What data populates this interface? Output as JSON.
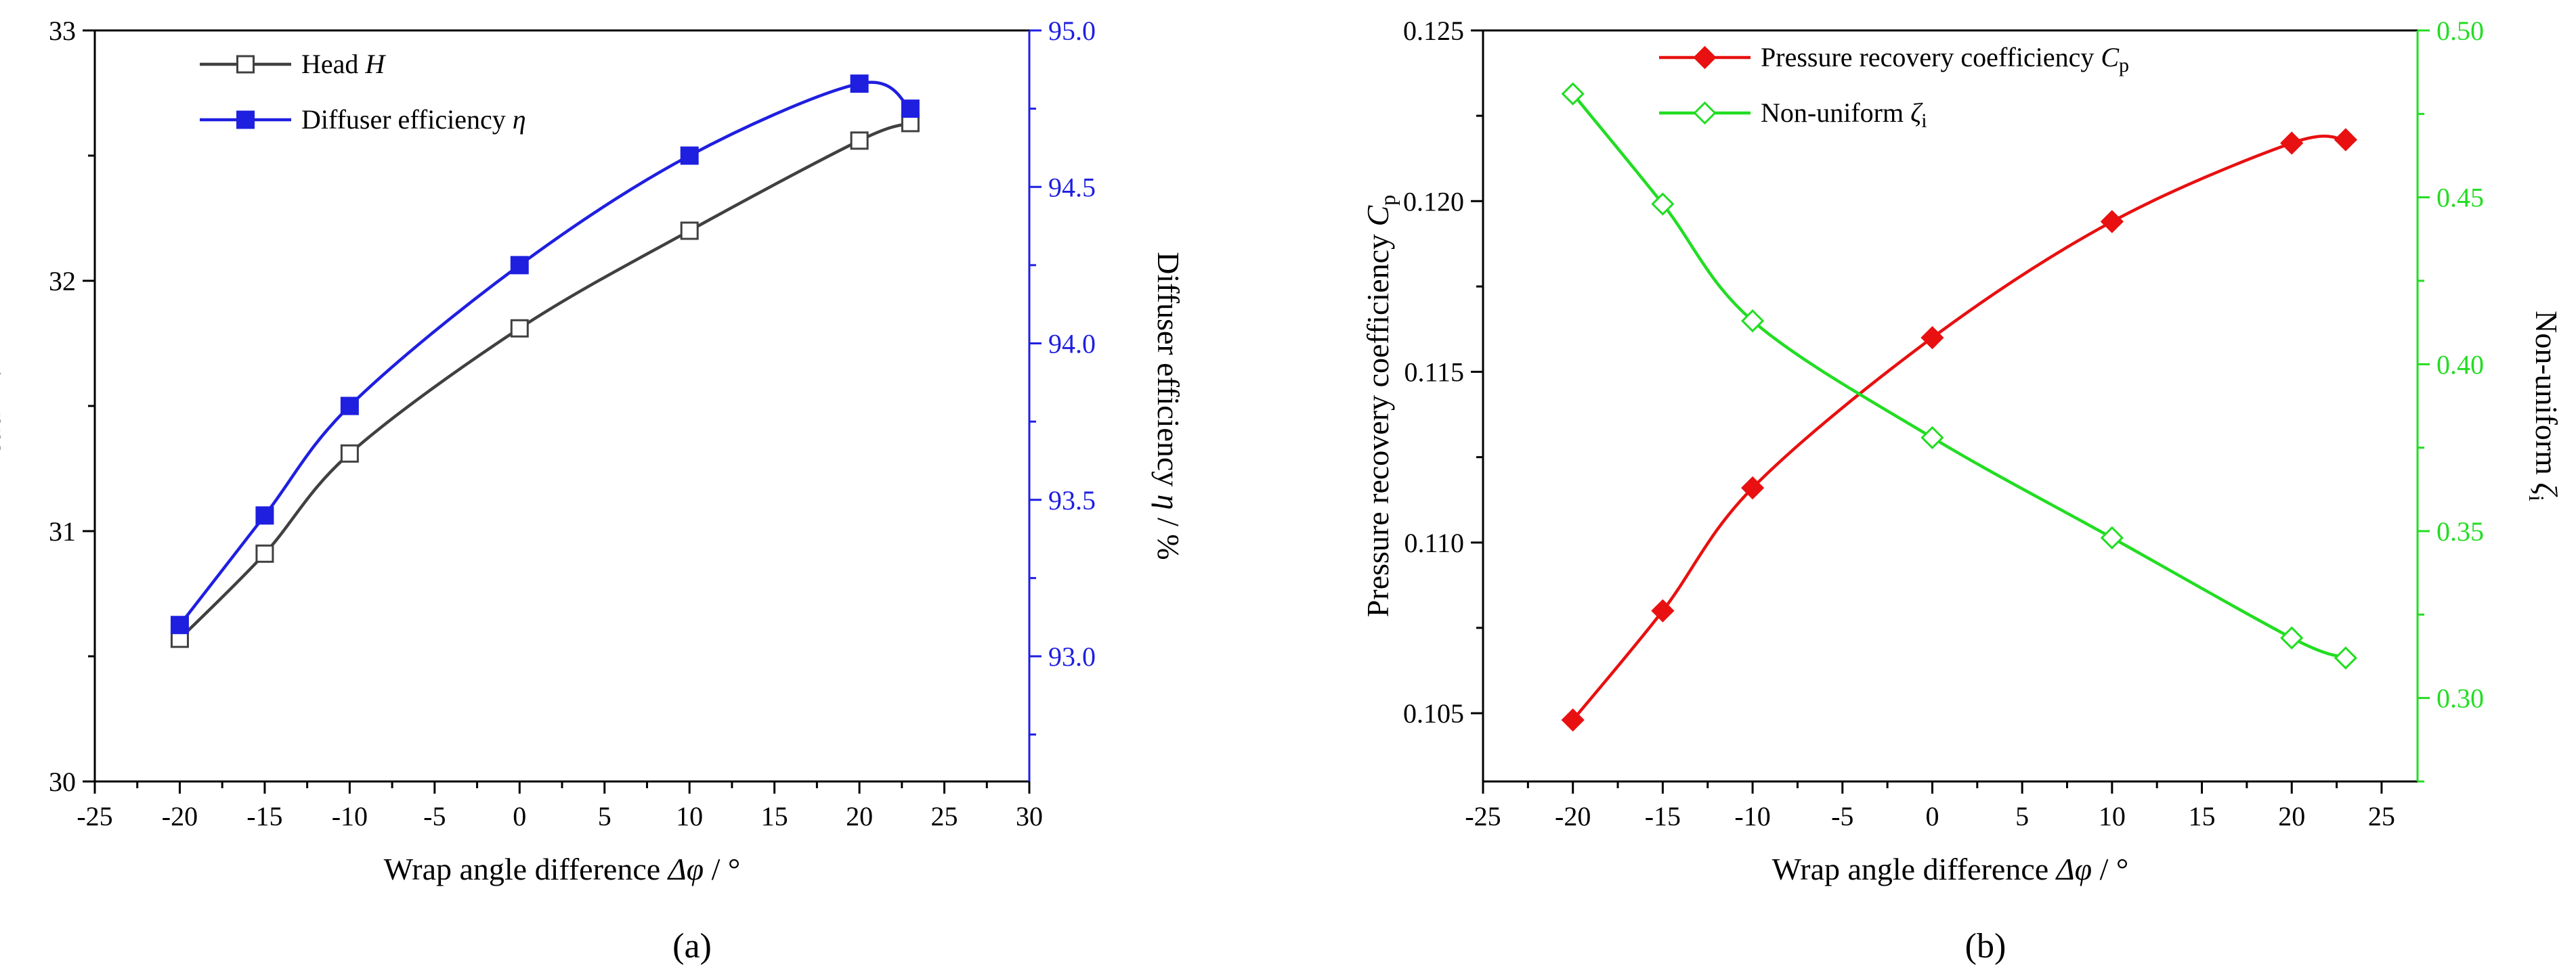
{
  "chart_data": [
    {
      "panel": "(a)",
      "type": "line",
      "x": [
        -20,
        -15,
        -10,
        0,
        10,
        20,
        23
      ],
      "xlim": [
        -25,
        30
      ],
      "xticks": [
        "-25",
        "-20",
        "-15",
        "-10",
        "-5",
        "0",
        "5",
        "10",
        "15",
        "20",
        "25",
        "30"
      ],
      "xlabel_prefix": "Wrap angle difference ",
      "xlabel_symbol": "Δφ",
      "xlabel_unit": " / °",
      "left_axis": {
        "label_prefix": "Head ",
        "label_symbol": "H",
        "label_unit": " / m",
        "ylim": [
          30,
          33
        ],
        "ticks": [
          "30",
          "31",
          "32",
          "33"
        ],
        "color": "#000000"
      },
      "right_axis": {
        "label_prefix": "Diffuser efficiency ",
        "label_symbol": "η",
        "label_unit": " / %",
        "ylim": [
          92.6,
          95.0
        ],
        "ticks": [
          "93.0",
          "93.5",
          "94.0",
          "94.5",
          "95.0"
        ],
        "color": "#1f1fe0"
      },
      "series": [
        {
          "name_prefix": "Head ",
          "name_symbol": "H",
          "axis": "left",
          "marker": "open-square",
          "color": "#404040",
          "values": [
            30.57,
            30.91,
            31.31,
            31.81,
            32.2,
            32.56,
            32.63
          ]
        },
        {
          "name_prefix": "Diffuser efficiency ",
          "name_symbol": "η",
          "axis": "right",
          "marker": "filled-square",
          "color": "#1f1fe0",
          "values": [
            93.1,
            93.45,
            93.8,
            94.25,
            94.6,
            94.83,
            94.75
          ]
        }
      ]
    },
    {
      "panel": "(b)",
      "type": "line",
      "x": [
        -20,
        -15,
        -10,
        0,
        10,
        20,
        23
      ],
      "xlim": [
        -25,
        27
      ],
      "xticks": [
        "-25",
        "-20",
        "-15",
        "-10",
        "-5",
        "0",
        "5",
        "10",
        "15",
        "20",
        "25"
      ],
      "xlabel_prefix": "Wrap angle difference ",
      "xlabel_symbol": "Δφ",
      "xlabel_unit": " / °",
      "left_axis": {
        "label_prefix": "Pressure recovery coefficiency ",
        "label_symbol": "C",
        "label_sub": "p",
        "ylim": [
          0.103,
          0.125
        ],
        "ticks": [
          "0.105",
          "0.110",
          "0.115",
          "0.120",
          "0.125"
        ],
        "color": "#000000"
      },
      "right_axis": {
        "label_prefix": "Non-uniform ",
        "label_symbol": "ζ",
        "label_sub": "i",
        "ylim": [
          0.275,
          0.5
        ],
        "ticks": [
          "0.30",
          "0.35",
          "0.40",
          "0.45",
          "0.50"
        ],
        "color": "#22dd22"
      },
      "series": [
        {
          "name_prefix": "Pressure recovery coefficiency ",
          "name_symbol": "C",
          "name_sub": "p",
          "axis": "left",
          "marker": "filled-diamond",
          "color": "#e81010",
          "values": [
            0.1048,
            0.108,
            0.1116,
            0.116,
            0.1194,
            0.1217,
            0.1218
          ]
        },
        {
          "name_prefix": "Non-uniform ",
          "name_symbol": "ζ",
          "name_sub": "i",
          "axis": "right",
          "marker": "open-diamond",
          "color": "#22dd22",
          "values": [
            0.481,
            0.448,
            0.413,
            0.378,
            0.348,
            0.318,
            0.312
          ]
        }
      ]
    }
  ]
}
